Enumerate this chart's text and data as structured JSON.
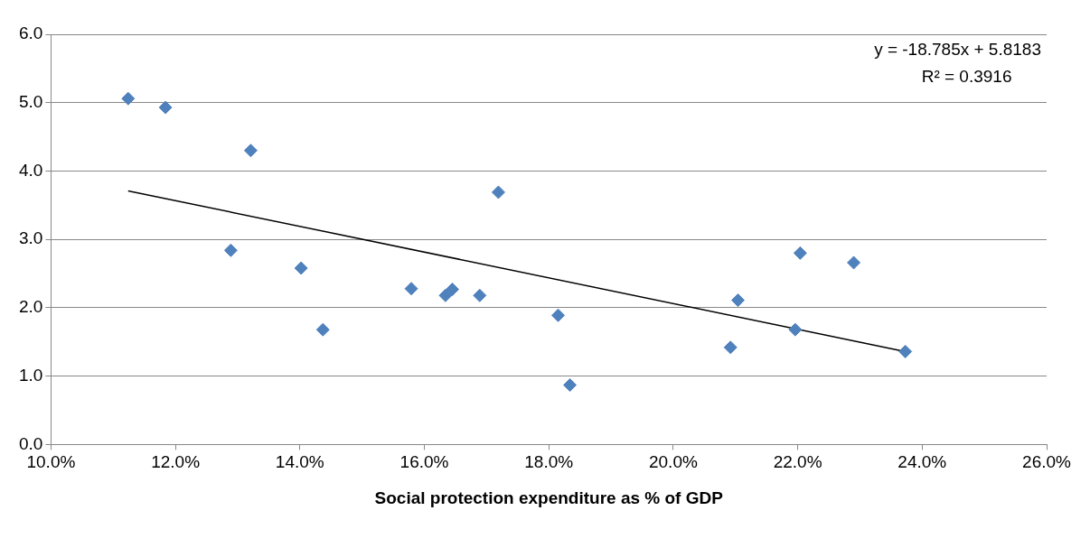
{
  "chart_data": {
    "type": "scatter",
    "xlabel": "Social protection expenditure as % of GDP",
    "marker": "diamond",
    "grid": "y",
    "legend": false,
    "xlim": [
      10,
      26
    ],
    "xticks": [
      {
        "value": 10,
        "label": "10.0%"
      },
      {
        "value": 12,
        "label": "12.0%"
      },
      {
        "value": 14,
        "label": "14.0%"
      },
      {
        "value": 16,
        "label": "16.0%"
      },
      {
        "value": 18,
        "label": "18.0%"
      },
      {
        "value": 20,
        "label": "20.0%"
      },
      {
        "value": 22,
        "label": "22.0%"
      },
      {
        "value": 24,
        "label": "24.0%"
      },
      {
        "value": 26,
        "label": "26.0%"
      }
    ],
    "ylim": [
      0,
      6
    ],
    "yticks": [
      {
        "value": 0,
        "label": "0.0"
      },
      {
        "value": 1,
        "label": "1.0"
      },
      {
        "value": 2,
        "label": "2.0"
      },
      {
        "value": 3,
        "label": "3.0"
      },
      {
        "value": 4,
        "label": "4.0"
      },
      {
        "value": 5,
        "label": "5.0"
      },
      {
        "value": 6,
        "label": "6.0"
      }
    ],
    "annotations": [
      "y = -18.785x + 5.8183",
      "R² = 0.3916"
    ],
    "series": [
      {
        "color": "#4f81bd",
        "x": [
          11.24,
          11.84,
          13.21,
          12.89,
          14.02,
          14.37,
          15.79,
          16.34,
          16.45,
          16.89,
          17.19,
          18.15,
          18.34,
          20.92,
          21.04,
          21.96,
          22.04,
          22.9,
          23.73
        ],
        "values": [
          5.06,
          4.93,
          4.3,
          2.84,
          2.58,
          1.68,
          2.28,
          2.18,
          2.27,
          2.18,
          3.69,
          1.89,
          0.87,
          1.42,
          2.11,
          1.68,
          2.8,
          2.66,
          1.36
        ]
      },
      {
        "type": "line",
        "marker": "none",
        "color": "#000000",
        "x": [
          11.24,
          23.73
        ],
        "values": [
          3.71,
          1.36
        ]
      }
    ]
  }
}
